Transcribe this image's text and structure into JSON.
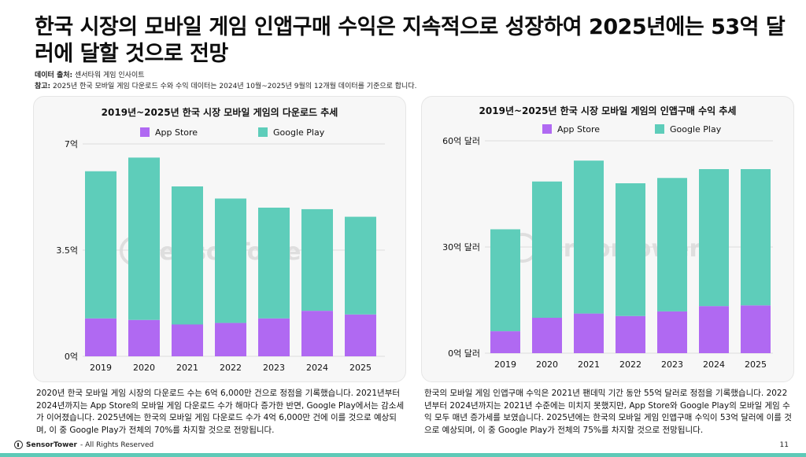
{
  "header": {
    "title": "한국 시장의 모바일 게임 인앱구매 수익은 지속적으로 성장하여 2025년에는 53억 달러에 달할 것으로 전망",
    "source_label": "데이터 출처:",
    "source_value": " 센서타워 게임 인사이트",
    "note_label": "참고:",
    "note_value": " 2025년 한국 모바일 게임 다운로드 수와 수익 데이터는 2024년 10월~2025년 9월의 12개월 데이터를 기준으로 합니다."
  },
  "colors": {
    "app_store": "#b069f2",
    "google_play": "#5ecdba",
    "watermark": "#dedede"
  },
  "watermark": "SensorTower",
  "chart_data": [
    {
      "type": "bar",
      "stacked": true,
      "title": "2019년~2025년 한국 시장 모바일 게임의 다운로드 추세",
      "categories": [
        "2019",
        "2020",
        "2021",
        "2022",
        "2023",
        "2024",
        "2025"
      ],
      "series": [
        {
          "name": "App Store",
          "values": [
            1.25,
            1.2,
            1.05,
            1.1,
            1.25,
            1.5,
            1.38
          ]
        },
        {
          "name": "Google Play",
          "values": [
            4.85,
            5.35,
            4.55,
            4.1,
            3.65,
            3.35,
            3.22
          ]
        }
      ],
      "yticks": [
        "0억",
        "3.5억",
        "7억"
      ],
      "ylim": [
        0,
        7
      ],
      "legend": "top",
      "grid": true
    },
    {
      "type": "bar",
      "stacked": true,
      "title": "2019년~2025년 한국 시장 모바일 게임의 인앱구매 수익 추세",
      "categories": [
        "2019",
        "2020",
        "2021",
        "2022",
        "2023",
        "2024",
        "2025"
      ],
      "series": [
        {
          "name": "App Store",
          "values": [
            6.2,
            10,
            11.2,
            10.5,
            11.8,
            13.3,
            13.5
          ]
        },
        {
          "name": "Google Play",
          "values": [
            28.8,
            38.5,
            43.2,
            37.5,
            37.7,
            38.7,
            38.5
          ]
        }
      ],
      "yticks": [
        "0억 달러",
        "30억 달러",
        "60억 달러"
      ],
      "ylim": [
        0,
        60
      ],
      "legend": "top",
      "grid": true
    }
  ],
  "descriptions": {
    "left": "2020년 한국 모바일 게임 시장의 다운로드 수는 6억 6,000만 건으로 정점을 기록했습니다. 2021년부터 2024년까지는 App Store의 모바일 게임 다운로드 수가 해마다 증가한 반면, Google Play에서는 감소세가 이어졌습니다. 2025년에는 한국의 모바일 게임 다운로드 수가 4억 6,000만 건에 이를 것으로 예상되며, 이 중 Google Play가 전체의 70%를 차지할 것으로 전망됩니다.",
    "right": "한국의 모바일 게임 인앱구매 수익은 2021년 팬데믹 기간 동안 55억 달러로 정점을 기록했습니다. 2022년부터 2024년까지는 2021년 수준에는 미치지 못했지만, App Store와 Google Play의 모바일 게임 수익 모두 매년 증가세를 보였습니다. 2025년에는 한국의 모바일 게임 인앱구매 수익이 53억 달러에 이를 것으로 예상되며, 이 중 Google Play가 전체의 75%를 차지할 것으로 전망됩니다."
  },
  "footer": {
    "brand": "SensorTower",
    "rights": " - All Rights Reserved",
    "page": "11"
  }
}
